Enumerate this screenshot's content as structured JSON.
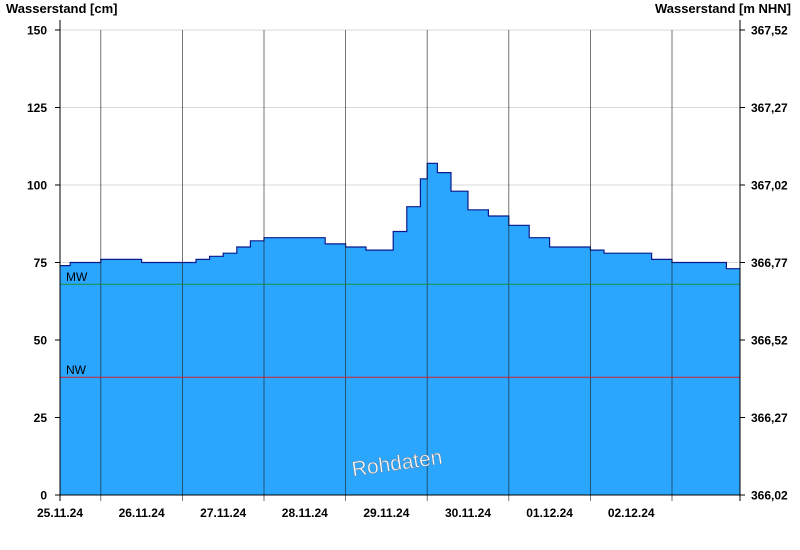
{
  "chart_data": {
    "type": "area",
    "ylabel_left": "Wasserstand [cm]",
    "ylabel_right": "Wasserstand [m NHN]",
    "ylim_left": [
      0,
      150
    ],
    "ylim_right": [
      366.02,
      367.52
    ],
    "yticks_left": [
      "0",
      "25",
      "50",
      "75",
      "100",
      "125",
      "150"
    ],
    "yticks_right": [
      "366,02",
      "366,27",
      "366,52",
      "366,77",
      "367,02",
      "367,27",
      "367,52"
    ],
    "xlim": [
      "2024-11-24 12:00",
      "2024-12-02 20:00"
    ],
    "xticks": [
      "25.11.24",
      "26.11.24",
      "27.11.24",
      "28.11.24",
      "29.11.24",
      "30.11.24",
      "01.12.24",
      "02.12.24"
    ],
    "series": [
      {
        "color": "#2aa6ff",
        "points": [
          [
            "2024-11-24 12:00",
            74
          ],
          [
            "2024-11-24 15:00",
            75
          ],
          [
            "2024-11-24 21:00",
            75
          ],
          [
            "2024-11-25 00:00",
            76
          ],
          [
            "2024-11-25 06:00",
            76
          ],
          [
            "2024-11-25 12:00",
            75
          ],
          [
            "2024-11-25 22:00",
            75
          ],
          [
            "2024-11-26 04:00",
            76
          ],
          [
            "2024-11-26 08:00",
            77
          ],
          [
            "2024-11-26 12:00",
            78
          ],
          [
            "2024-11-26 16:00",
            80
          ],
          [
            "2024-11-26 20:00",
            82
          ],
          [
            "2024-11-27 00:00",
            83
          ],
          [
            "2024-11-27 12:00",
            83
          ],
          [
            "2024-11-27 18:00",
            81
          ],
          [
            "2024-11-28 00:00",
            80
          ],
          [
            "2024-11-28 06:00",
            79
          ],
          [
            "2024-11-28 09:00",
            79
          ],
          [
            "2024-11-28 14:00",
            85
          ],
          [
            "2024-11-28 18:00",
            93
          ],
          [
            "2024-11-28 22:00",
            102
          ],
          [
            "2024-11-29 00:00",
            107
          ],
          [
            "2024-11-29 03:00",
            104
          ],
          [
            "2024-11-29 07:00",
            98
          ],
          [
            "2024-11-29 12:00",
            92
          ],
          [
            "2024-11-29 18:00",
            90
          ],
          [
            "2024-11-30 00:00",
            87
          ],
          [
            "2024-11-30 06:00",
            83
          ],
          [
            "2024-11-30 12:00",
            80
          ],
          [
            "2024-11-30 18:00",
            80
          ],
          [
            "2024-12-01 00:00",
            79
          ],
          [
            "2024-12-01 04:00",
            78
          ],
          [
            "2024-12-01 12:00",
            78
          ],
          [
            "2024-12-01 18:00",
            76
          ],
          [
            "2024-12-02 00:00",
            75
          ],
          [
            "2024-12-02 06:00",
            75
          ],
          [
            "2024-12-02 12:00",
            75
          ],
          [
            "2024-12-02 16:00",
            73
          ],
          [
            "2024-12-02 20:00",
            73
          ]
        ]
      }
    ],
    "reference_lines": [
      {
        "label": "MW",
        "value": 68,
        "color": "#1a8f3a"
      },
      {
        "label": "NW",
        "value": 38,
        "color": "#d61e2a"
      }
    ],
    "annotation": "Rohdaten",
    "grid": true
  }
}
